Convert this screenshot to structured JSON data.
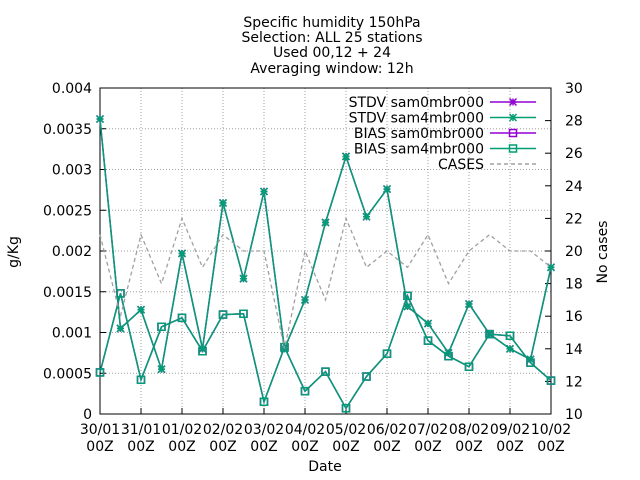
{
  "chart_data": {
    "type": "line",
    "title_lines": [
      "Specific humidity 150hPa",
      "Selection: ALL     25 stations",
      "Used 00,12 + 24",
      "Averaging window: 12h"
    ],
    "xlabel": "Date",
    "ylabel": "g/Kg",
    "y2label": "No cases",
    "ylim": [
      0,
      0.004
    ],
    "y2lim": [
      10,
      30
    ],
    "yticks": [
      "0",
      "0.0005",
      "0.001",
      "0.0015",
      "0.002",
      "0.0025",
      "0.003",
      "0.0035",
      "0.004"
    ],
    "y2ticks": [
      "10",
      "12",
      "14",
      "16",
      "18",
      "20",
      "22",
      "24",
      "26",
      "28",
      "30"
    ],
    "xticks": [
      {
        "d": "30/01",
        "t": "00Z"
      },
      {
        "d": "31/01",
        "t": "00Z"
      },
      {
        "d": "01/02",
        "t": "00Z"
      },
      {
        "d": "02/02",
        "t": "00Z"
      },
      {
        "d": "03/02",
        "t": "00Z"
      },
      {
        "d": "04/02",
        "t": "00Z"
      },
      {
        "d": "05/02",
        "t": "00Z"
      },
      {
        "d": "06/02",
        "t": "00Z"
      },
      {
        "d": "07/02",
        "t": "00Z"
      },
      {
        "d": "08/02",
        "t": "00Z"
      },
      {
        "d": "09/02",
        "t": "00Z"
      },
      {
        "d": "10/02",
        "t": "00Z"
      }
    ],
    "x": [
      "30/01 00Z",
      "30/01 12Z",
      "31/01 00Z",
      "31/01 12Z",
      "01/02 00Z",
      "01/02 12Z",
      "02/02 00Z",
      "02/02 12Z",
      "03/02 00Z",
      "03/02 12Z",
      "04/02 00Z",
      "04/02 12Z",
      "05/02 00Z",
      "05/02 12Z",
      "06/02 00Z",
      "06/02 12Z",
      "07/02 00Z",
      "07/02 12Z",
      "08/02 00Z",
      "08/02 12Z",
      "09/02 00Z",
      "09/02 12Z",
      "10/02 00Z"
    ],
    "legend_position": "top-right",
    "grid": true,
    "series": [
      {
        "name": "STDV sam0mbr000",
        "axis": "y1",
        "color": "#9400d3",
        "marker": "star",
        "values": [
          0.00362,
          0.00105,
          0.00128,
          0.00055,
          0.00197,
          0.0008,
          0.00259,
          0.00166,
          0.00273,
          0.0008,
          0.0014,
          0.00235,
          0.00316,
          0.00242,
          0.00276,
          0.00132,
          0.00111,
          0.00075,
          0.00135,
          0.00098,
          0.0008,
          0.00067,
          0.0018
        ]
      },
      {
        "name": "STDV sam4mbr000",
        "axis": "y1",
        "color": "#009e73",
        "marker": "star",
        "values": [
          0.00362,
          0.00105,
          0.00128,
          0.00055,
          0.00197,
          0.0008,
          0.00259,
          0.00166,
          0.00273,
          0.0008,
          0.0014,
          0.00235,
          0.00316,
          0.00242,
          0.00276,
          0.00132,
          0.00111,
          0.00075,
          0.00135,
          0.00098,
          0.0008,
          0.00067,
          0.0018
        ]
      },
      {
        "name": "BIAS sam0mbr000",
        "axis": "y1",
        "color": "#9400d3",
        "marker": "square",
        "values": [
          0.00051,
          0.00148,
          0.00042,
          0.00107,
          0.00118,
          0.00077,
          0.00122,
          0.00123,
          0.00015,
          0.00082,
          0.00028,
          0.00052,
          7e-05,
          0.00046,
          0.00074,
          0.00145,
          0.0009,
          0.00071,
          0.00058,
          0.00098,
          0.00096,
          0.00063,
          0.00041
        ]
      },
      {
        "name": "BIAS sam4mbr000",
        "axis": "y1",
        "color": "#009e73",
        "marker": "square",
        "values": [
          0.00051,
          0.00148,
          0.00042,
          0.00107,
          0.00118,
          0.00077,
          0.00122,
          0.00123,
          0.00015,
          0.00082,
          0.00028,
          0.00052,
          7e-05,
          0.00046,
          0.00074,
          0.00145,
          0.0009,
          0.00071,
          0.00058,
          0.00098,
          0.00096,
          0.00063,
          0.00041
        ]
      },
      {
        "name": "CASES",
        "axis": "y2",
        "color": "#a0a0a0",
        "marker": "none",
        "dashed": true,
        "values": [
          21,
          16,
          21,
          18,
          22,
          19,
          21,
          20,
          20,
          14,
          20,
          17,
          22,
          19,
          20,
          19,
          21,
          18,
          20,
          21,
          20,
          20,
          19
        ]
      }
    ]
  }
}
